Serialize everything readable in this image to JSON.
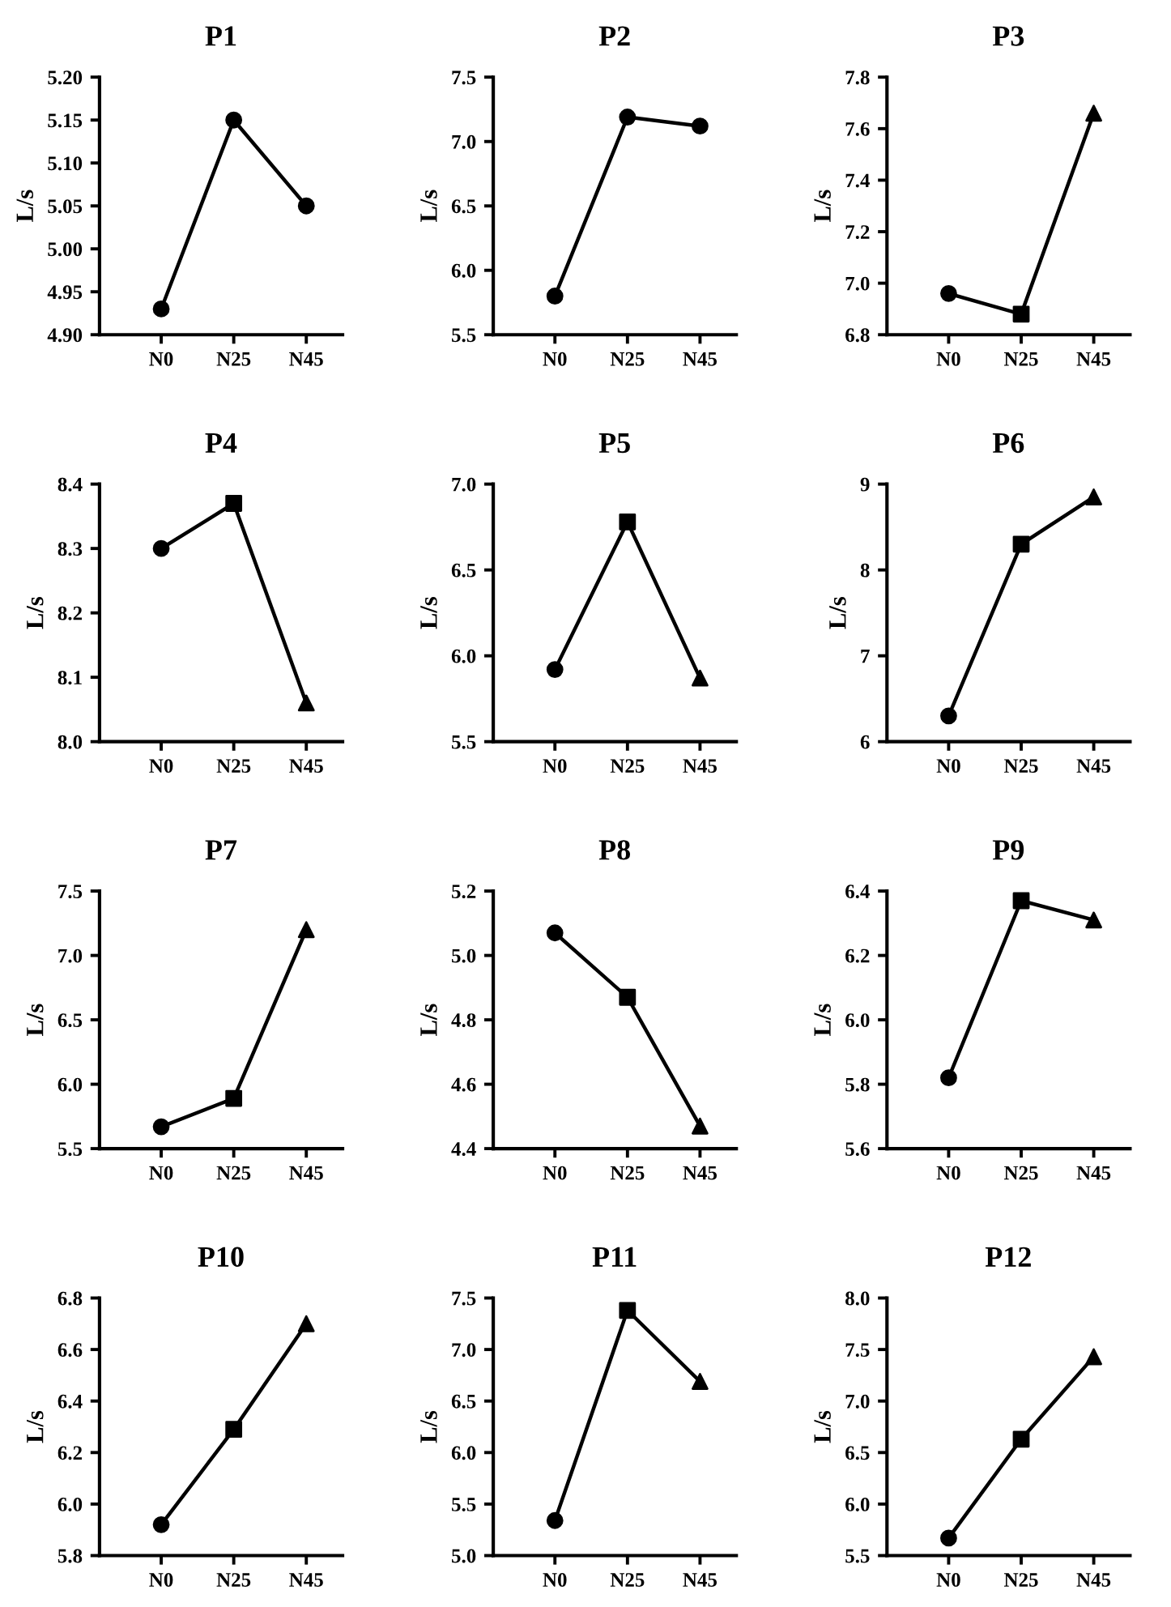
{
  "chart_data": [
    {
      "type": "line",
      "title": "P1",
      "ylabel": "L/s",
      "categories": [
        "N0",
        "N25",
        "N45"
      ],
      "ylim": [
        4.9,
        5.2
      ],
      "yticks": [
        {
          "value": 4.9,
          "label": "4.90"
        },
        {
          "value": 4.95,
          "label": "4.95"
        },
        {
          "value": 5.0,
          "label": "5.00"
        },
        {
          "value": 5.05,
          "label": "5.05"
        },
        {
          "value": 5.1,
          "label": "5.10"
        },
        {
          "value": 5.15,
          "label": "5.15"
        },
        {
          "value": 5.2,
          "label": "5.20"
        }
      ],
      "grid": false,
      "series": [
        {
          "type": "line",
          "color": "#000000",
          "marker": "circle",
          "values": [
            4.93,
            5.15,
            5.05
          ]
        }
      ]
    },
    {
      "type": "line",
      "title": "P2",
      "ylabel": "L/s",
      "categories": [
        "N0",
        "N25",
        "N45"
      ],
      "ylim": [
        5.5,
        7.5
      ],
      "yticks": [
        5.5,
        {
          "value": 6.0,
          "label": "6.0"
        },
        6.5,
        {
          "value": 7.0,
          "label": "7.0"
        },
        7.5
      ],
      "grid": false,
      "series": [
        {
          "type": "line",
          "color": "#000000",
          "marker": "circle",
          "values": [
            5.8,
            7.19,
            7.12
          ]
        }
      ]
    },
    {
      "type": "line",
      "title": "P3",
      "ylabel": "L/s",
      "categories": [
        "N0",
        "N25",
        "N45"
      ],
      "ylim": [
        6.8,
        7.8
      ],
      "yticks": [
        6.8,
        {
          "value": 7.0,
          "label": "7.0"
        },
        7.2,
        7.4,
        7.6,
        7.8
      ],
      "grid": false,
      "series": [
        {
          "type": "line",
          "color": "#000000",
          "marker": "none",
          "values": [
            6.96,
            6.88,
            7.66
          ]
        },
        {
          "type": "scatter",
          "color": "#000000",
          "marker": "circle",
          "x": [
            "N0"
          ],
          "values": [
            6.96
          ]
        },
        {
          "type": "scatter",
          "color": "#000000",
          "marker": "square",
          "x": [
            "N25"
          ],
          "values": [
            6.88
          ]
        },
        {
          "type": "scatter",
          "color": "#000000",
          "marker": "triangle",
          "x": [
            "N45"
          ],
          "values": [
            7.66
          ]
        }
      ]
    },
    {
      "type": "line",
      "title": "P4",
      "ylabel": "L/s",
      "categories": [
        "N0",
        "N25",
        "N45"
      ],
      "ylim": [
        8.0,
        8.4
      ],
      "yticks": [
        {
          "value": 8.0,
          "label": "8.0"
        },
        8.1,
        8.2,
        8.3,
        8.4
      ],
      "grid": false,
      "series": [
        {
          "type": "line",
          "color": "#000000",
          "marker": "none",
          "values": [
            8.3,
            8.37,
            8.06
          ]
        },
        {
          "type": "scatter",
          "color": "#000000",
          "marker": "circle",
          "x": [
            "N0"
          ],
          "values": [
            8.3
          ]
        },
        {
          "type": "scatter",
          "color": "#000000",
          "marker": "square",
          "x": [
            "N25"
          ],
          "values": [
            8.37
          ]
        },
        {
          "type": "scatter",
          "color": "#000000",
          "marker": "triangle",
          "x": [
            "N45"
          ],
          "values": [
            8.06
          ]
        }
      ]
    },
    {
      "type": "line",
      "title": "P5",
      "ylabel": "L/s",
      "categories": [
        "N0",
        "N25",
        "N45"
      ],
      "ylim": [
        5.5,
        7.0
      ],
      "yticks": [
        5.5,
        {
          "value": 6.0,
          "label": "6.0"
        },
        6.5,
        {
          "value": 7.0,
          "label": "7.0"
        }
      ],
      "grid": false,
      "series": [
        {
          "type": "line",
          "color": "#000000",
          "marker": "none",
          "values": [
            5.92,
            6.78,
            5.87
          ]
        },
        {
          "type": "scatter",
          "color": "#000000",
          "marker": "circle",
          "x": [
            "N0"
          ],
          "values": [
            5.92
          ]
        },
        {
          "type": "scatter",
          "color": "#000000",
          "marker": "square",
          "x": [
            "N25"
          ],
          "values": [
            6.78
          ]
        },
        {
          "type": "scatter",
          "color": "#000000",
          "marker": "triangle",
          "x": [
            "N45"
          ],
          "values": [
            5.87
          ]
        }
      ]
    },
    {
      "type": "line",
      "title": "P6",
      "ylabel": "L/s",
      "categories": [
        "N0",
        "N25",
        "N45"
      ],
      "ylim": [
        6,
        9
      ],
      "yticks": [
        6,
        7,
        8,
        9
      ],
      "grid": false,
      "series": [
        {
          "type": "line",
          "color": "#000000",
          "marker": "none",
          "values": [
            6.3,
            8.3,
            8.85
          ]
        },
        {
          "type": "scatter",
          "color": "#000000",
          "marker": "circle",
          "x": [
            "N0"
          ],
          "values": [
            6.3
          ]
        },
        {
          "type": "scatter",
          "color": "#000000",
          "marker": "square",
          "x": [
            "N25"
          ],
          "values": [
            8.3
          ]
        },
        {
          "type": "scatter",
          "color": "#000000",
          "marker": "triangle",
          "x": [
            "N45"
          ],
          "values": [
            8.85
          ]
        }
      ]
    },
    {
      "type": "line",
      "title": "P7",
      "ylabel": "L/s",
      "categories": [
        "N0",
        "N25",
        "N45"
      ],
      "ylim": [
        5.5,
        7.5
      ],
      "yticks": [
        5.5,
        {
          "value": 6.0,
          "label": "6.0"
        },
        6.5,
        {
          "value": 7.0,
          "label": "7.0"
        },
        7.5
      ],
      "grid": false,
      "series": [
        {
          "type": "line",
          "color": "#000000",
          "marker": "none",
          "values": [
            5.67,
            5.89,
            7.2
          ]
        },
        {
          "type": "scatter",
          "color": "#000000",
          "marker": "circle",
          "x": [
            "N0"
          ],
          "values": [
            5.67
          ]
        },
        {
          "type": "scatter",
          "color": "#000000",
          "marker": "square",
          "x": [
            "N25"
          ],
          "values": [
            5.89
          ]
        },
        {
          "type": "scatter",
          "color": "#000000",
          "marker": "triangle",
          "x": [
            "N45"
          ],
          "values": [
            7.2
          ]
        }
      ]
    },
    {
      "type": "line",
      "title": "P8",
      "ylabel": "L/s",
      "categories": [
        "N0",
        "N25",
        "N45"
      ],
      "ylim": [
        4.4,
        5.2
      ],
      "yticks": [
        4.4,
        4.6,
        4.8,
        {
          "value": 5.0,
          "label": "5.0"
        },
        5.2
      ],
      "grid": false,
      "series": [
        {
          "type": "line",
          "color": "#000000",
          "marker": "none",
          "values": [
            5.07,
            4.87,
            4.47
          ]
        },
        {
          "type": "scatter",
          "color": "#000000",
          "marker": "circle",
          "x": [
            "N0"
          ],
          "values": [
            5.07
          ]
        },
        {
          "type": "scatter",
          "color": "#000000",
          "marker": "square",
          "x": [
            "N25"
          ],
          "values": [
            4.87
          ]
        },
        {
          "type": "scatter",
          "color": "#000000",
          "marker": "triangle",
          "x": [
            "N45"
          ],
          "values": [
            4.47
          ]
        }
      ]
    },
    {
      "type": "line",
      "title": "P9",
      "ylabel": "L/s",
      "categories": [
        "N0",
        "N25",
        "N45"
      ],
      "ylim": [
        5.6,
        6.4
      ],
      "yticks": [
        5.6,
        5.8,
        {
          "value": 6.0,
          "label": "6.0"
        },
        6.2,
        6.4
      ],
      "grid": false,
      "series": [
        {
          "type": "line",
          "color": "#000000",
          "marker": "none",
          "values": [
            5.82,
            6.37,
            6.31
          ]
        },
        {
          "type": "scatter",
          "color": "#000000",
          "marker": "circle",
          "x": [
            "N0"
          ],
          "values": [
            5.82
          ]
        },
        {
          "type": "scatter",
          "color": "#000000",
          "marker": "square",
          "x": [
            "N25"
          ],
          "values": [
            6.37
          ]
        },
        {
          "type": "scatter",
          "color": "#000000",
          "marker": "triangle",
          "x": [
            "N45"
          ],
          "values": [
            6.31
          ]
        }
      ]
    },
    {
      "type": "line",
      "title": "P10",
      "ylabel": "L/s",
      "categories": [
        "N0",
        "N25",
        "N45"
      ],
      "ylim": [
        5.8,
        6.8
      ],
      "yticks": [
        5.8,
        {
          "value": 6.0,
          "label": "6.0"
        },
        6.2,
        6.4,
        6.6,
        6.8
      ],
      "grid": false,
      "series": [
        {
          "type": "line",
          "color": "#000000",
          "marker": "none",
          "values": [
            5.92,
            6.29,
            6.7
          ]
        },
        {
          "type": "scatter",
          "color": "#000000",
          "marker": "circle",
          "x": [
            "N0"
          ],
          "values": [
            5.92
          ]
        },
        {
          "type": "scatter",
          "color": "#000000",
          "marker": "square",
          "x": [
            "N25"
          ],
          "values": [
            6.29
          ]
        },
        {
          "type": "scatter",
          "color": "#000000",
          "marker": "triangle",
          "x": [
            "N45"
          ],
          "values": [
            6.7
          ]
        }
      ]
    },
    {
      "type": "line",
      "title": "P11",
      "ylabel": "L/s",
      "categories": [
        "N0",
        "N25",
        "N45"
      ],
      "ylim": [
        5.0,
        7.5
      ],
      "yticks": [
        {
          "value": 5.0,
          "label": "5.0"
        },
        5.5,
        {
          "value": 6.0,
          "label": "6.0"
        },
        6.5,
        {
          "value": 7.0,
          "label": "7.0"
        },
        7.5
      ],
      "grid": false,
      "series": [
        {
          "type": "line",
          "color": "#000000",
          "marker": "none",
          "values": [
            5.34,
            7.38,
            6.69
          ]
        },
        {
          "type": "scatter",
          "color": "#000000",
          "marker": "circle",
          "x": [
            "N0"
          ],
          "values": [
            5.34
          ]
        },
        {
          "type": "scatter",
          "color": "#000000",
          "marker": "square",
          "x": [
            "N25"
          ],
          "values": [
            7.38
          ]
        },
        {
          "type": "scatter",
          "color": "#000000",
          "marker": "triangle",
          "x": [
            "N45"
          ],
          "values": [
            6.69
          ]
        }
      ]
    },
    {
      "type": "line",
      "title": "P12",
      "ylabel": "L/s",
      "categories": [
        "N0",
        "N25",
        "N45"
      ],
      "ylim": [
        5.5,
        8.0
      ],
      "yticks": [
        5.5,
        {
          "value": 6.0,
          "label": "6.0"
        },
        6.5,
        {
          "value": 7.0,
          "label": "7.0"
        },
        7.5,
        {
          "value": 8.0,
          "label": "8.0"
        }
      ],
      "grid": false,
      "series": [
        {
          "type": "line",
          "color": "#000000",
          "marker": "none",
          "values": [
            5.67,
            6.63,
            7.43
          ]
        },
        {
          "type": "scatter",
          "color": "#000000",
          "marker": "circle",
          "x": [
            "N0"
          ],
          "values": [
            5.67
          ]
        },
        {
          "type": "scatter",
          "color": "#000000",
          "marker": "square",
          "x": [
            "N25"
          ],
          "values": [
            6.63
          ]
        },
        {
          "type": "scatter",
          "color": "#000000",
          "marker": "triangle",
          "x": [
            "N45"
          ],
          "values": [
            7.43
          ]
        }
      ]
    }
  ]
}
